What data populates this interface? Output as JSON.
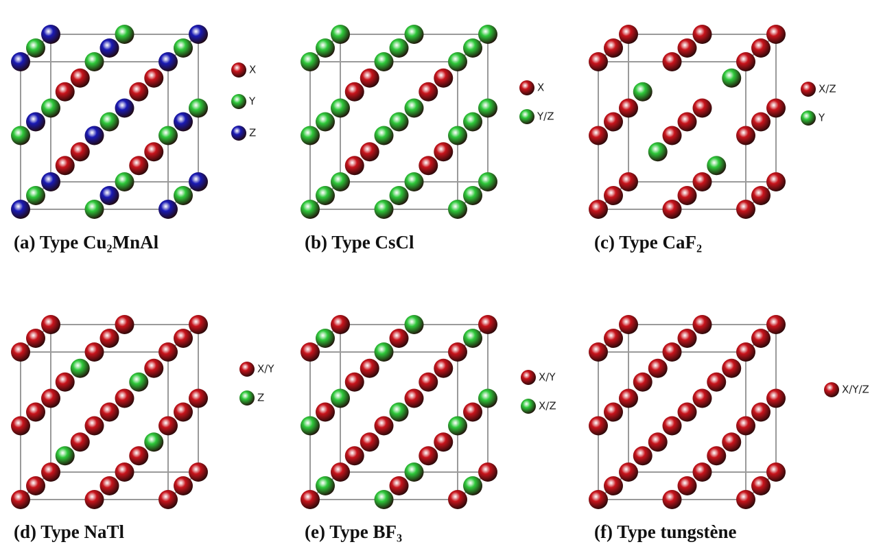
{
  "panels": [
    {
      "caption": "(a) Type Cu₂MnAl",
      "legend": [
        {
          "label": "X",
          "color": "#c8141c"
        },
        {
          "label": "Y",
          "color": "#2ec83a"
        },
        {
          "label": "Z",
          "color": "#1a1ab4"
        }
      ]
    },
    {
      "caption": "(b) Type CsCl",
      "legend": [
        {
          "label": "X",
          "color": "#c8141c"
        },
        {
          "label": "Y/Z",
          "color": "#2ec83a"
        }
      ]
    },
    {
      "caption": "(c) Type CaF₂",
      "legend": [
        {
          "label": "X/Z",
          "color": "#c8141c"
        },
        {
          "label": "Y",
          "color": "#2ec83a"
        }
      ]
    },
    {
      "caption": "(d) Type NaTl",
      "legend": [
        {
          "label": "X/Y",
          "color": "#c8141c"
        },
        {
          "label": "Z",
          "color": "#2ec83a"
        }
      ]
    },
    {
      "caption": "(e) Type BF₃",
      "legend": [
        {
          "label": "X/Y",
          "color": "#c8141c"
        },
        {
          "label": "X/Z",
          "color": "#2ec83a"
        }
      ]
    },
    {
      "caption": "(f) Type tungstène",
      "legend": [
        {
          "label": "X/Y/Z",
          "color": "#c8141c"
        }
      ]
    }
  ]
}
